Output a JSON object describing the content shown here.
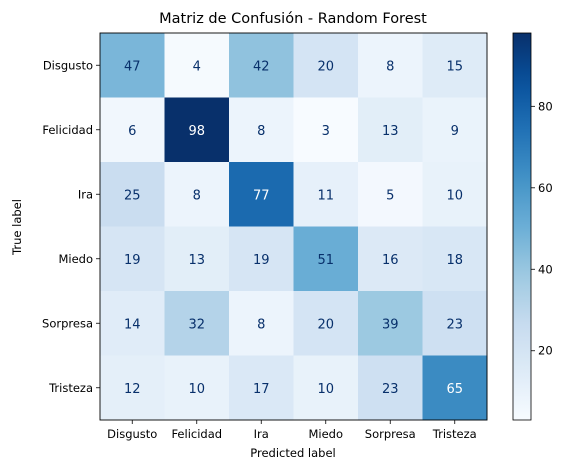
{
  "chart_data": {
    "type": "heatmap",
    "title": "Matriz de Confusión - Random Forest",
    "xlabel": "Predicted label",
    "ylabel": "True label",
    "x_categories": [
      "Disgusto",
      "Felicidad",
      "Ira",
      "Miedo",
      "Sorpresa",
      "Tristeza"
    ],
    "y_categories": [
      "Disgusto",
      "Felicidad",
      "Ira",
      "Miedo",
      "Sorpresa",
      "Tristeza"
    ],
    "values": [
      [
        47,
        4,
        42,
        20,
        8,
        15
      ],
      [
        6,
        98,
        8,
        3,
        13,
        9
      ],
      [
        25,
        8,
        77,
        11,
        5,
        10
      ],
      [
        19,
        13,
        19,
        51,
        16,
        18
      ],
      [
        14,
        32,
        8,
        20,
        39,
        23
      ],
      [
        12,
        10,
        17,
        10,
        23,
        65
      ]
    ],
    "colormap": "Blues",
    "color_range": [
      3,
      98
    ],
    "colorbar_ticks": [
      20,
      40,
      60,
      80
    ]
  }
}
